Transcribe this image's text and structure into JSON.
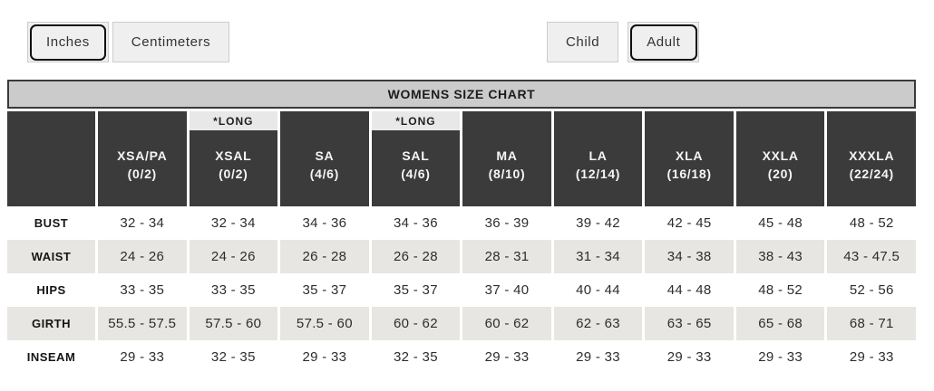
{
  "unit_toggle": {
    "options": [
      {
        "label": "Inches",
        "selected": true
      },
      {
        "label": "Centimeters",
        "selected": false
      }
    ]
  },
  "age_toggle": {
    "options": [
      {
        "label": "Child",
        "selected": false
      },
      {
        "label": "Adult",
        "selected": true
      }
    ]
  },
  "chart": {
    "title": "WOMENS SIZE CHART",
    "long_tag": "*LONG",
    "columns": [
      {
        "name": "XSA/PA",
        "sizes": "(0/2)",
        "long": false
      },
      {
        "name": "XSAL",
        "sizes": "(0/2)",
        "long": true
      },
      {
        "name": "SA",
        "sizes": "(4/6)",
        "long": false
      },
      {
        "name": "SAL",
        "sizes": "(4/6)",
        "long": true
      },
      {
        "name": "MA",
        "sizes": "(8/10)",
        "long": false
      },
      {
        "name": "LA",
        "sizes": "(12/14)",
        "long": false
      },
      {
        "name": "XLA",
        "sizes": "(16/18)",
        "long": false
      },
      {
        "name": "XXLA",
        "sizes": "(20)",
        "long": false
      },
      {
        "name": "XXXLA",
        "sizes": "(22/24)",
        "long": false
      }
    ],
    "rows": [
      {
        "label": "BUST",
        "values": [
          "32 - 34",
          "32 - 34",
          "34 - 36",
          "34 - 36",
          "36 - 39",
          "39 - 42",
          "42 - 45",
          "45 - 48",
          "48 - 52"
        ]
      },
      {
        "label": "WAIST",
        "values": [
          "24 - 26",
          "24 - 26",
          "26 - 28",
          "26 - 28",
          "28 - 31",
          "31 - 34",
          "34 - 38",
          "38 - 43",
          "43 - 47.5"
        ]
      },
      {
        "label": "HIPS",
        "values": [
          "33 - 35",
          "33 - 35",
          "35 - 37",
          "35 - 37",
          "37 - 40",
          "40 - 44",
          "44 - 48",
          "48 - 52",
          "52 - 56"
        ]
      },
      {
        "label": "GIRTH",
        "values": [
          "55.5 - 57.5",
          "57.5 - 60",
          "57.5 - 60",
          "60 - 62",
          "60 - 62",
          "62 - 63",
          "63 - 65",
          "65 - 68",
          "68 - 71"
        ]
      },
      {
        "label": "INSEAM",
        "values": [
          "29 - 33",
          "32 - 35",
          "29 - 33",
          "32 - 35",
          "29 - 33",
          "29 - 33",
          "29 - 33",
          "29 - 33",
          "29 - 33"
        ]
      }
    ]
  },
  "colors": {
    "header_bg": "#3b3b3b",
    "title_bg": "#cbcbcb",
    "stripe_bg": "#e8e6e3",
    "long_tag_bg": "#e8e8e8",
    "selected_border": "#0f0f0f"
  }
}
